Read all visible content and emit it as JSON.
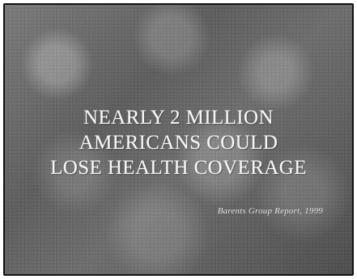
{
  "slide": {
    "headline_lines": [
      "NEARLY 2 MILLION",
      "AMERICANS COULD",
      "LOSE HEALTH COVERAGE"
    ],
    "source": "Barents Group Report,  1999"
  },
  "colors": {
    "background": "#666666",
    "text": "#f7f7f7",
    "border": "#111111"
  }
}
